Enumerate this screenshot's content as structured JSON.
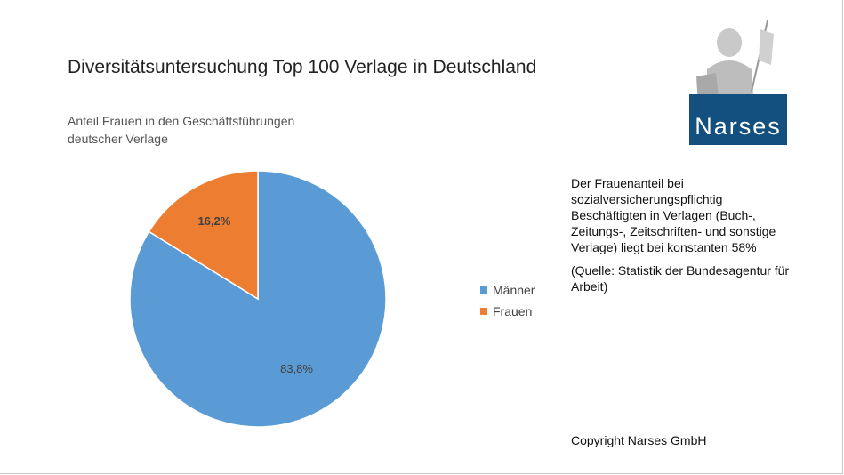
{
  "title": "Diversitätsuntersuchung Top 100 Verlage in Deutschland",
  "chart_data": {
    "type": "pie",
    "title": "Anteil Frauen in den Geschäftsführungen deutscher Verlage",
    "categories": [
      "Männer",
      "Frauen"
    ],
    "values": [
      83.8,
      16.2
    ],
    "data_labels": [
      "83,8%",
      "16,2%"
    ],
    "colors": [
      "#5b9bd5",
      "#ed7d31"
    ],
    "legend_position": "right"
  },
  "title_lines": [
    "Anteil Frauen in den Geschäftsführungen",
    "deutscher Verlage"
  ],
  "note": {
    "text": "Der Frauenanteil bei sozialversicherungspflichtig Beschäftigten in Verlagen (Buch-, Zeitungs-, Zeitschriften- und sonstige Verlage) liegt bei konstanten 58%",
    "source": "(Quelle: Statistik der Bundesagentur für Arbeit)"
  },
  "copyright": "Copyright Narses GmbH",
  "logo": {
    "text": "Narses",
    "color": "#14507f"
  }
}
